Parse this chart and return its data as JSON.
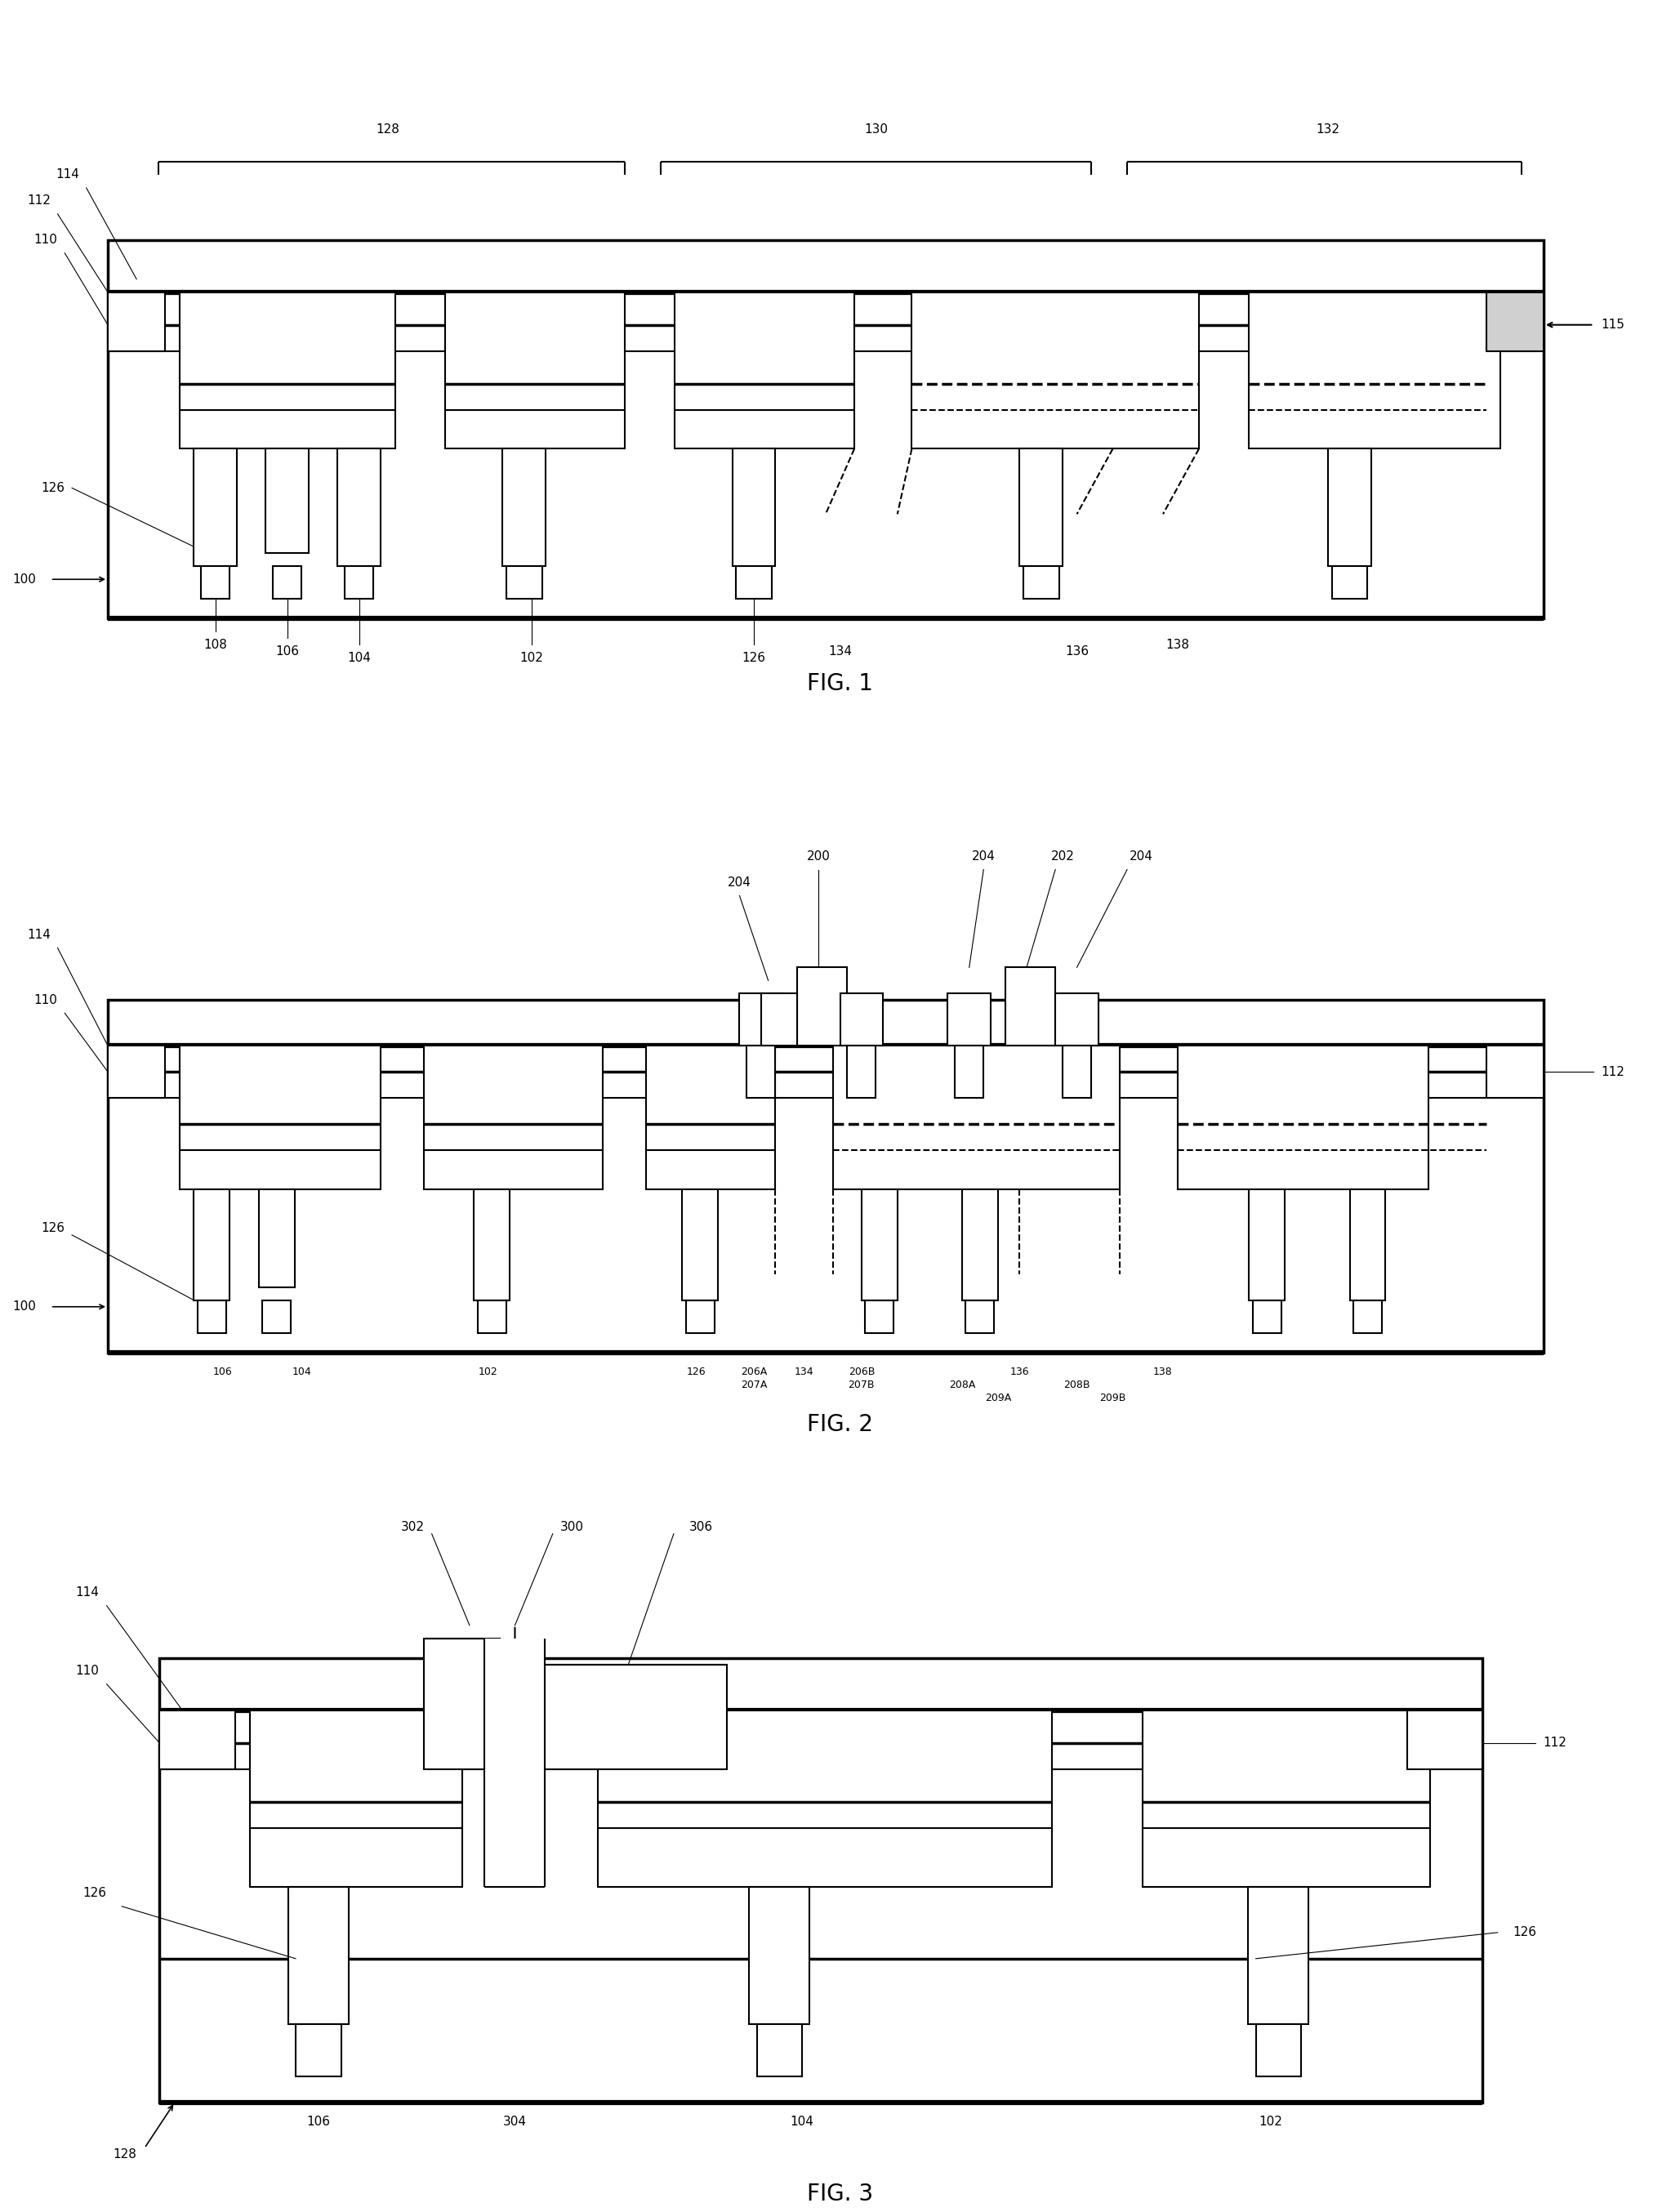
{
  "bg_color": "#ffffff",
  "lw_thin": 0.8,
  "lw_med": 1.5,
  "lw_thick": 2.5,
  "lw_vthick": 4.5,
  "fs_label": 11,
  "fs_title": 20,
  "fig1_title": "FIG. 1",
  "fig2_title": "FIG. 2",
  "fig3_title": "FIG. 3"
}
